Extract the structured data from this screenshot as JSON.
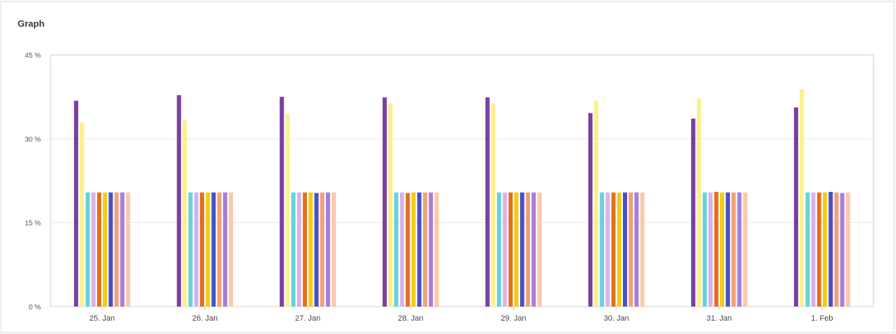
{
  "card": {
    "title": "Graph"
  },
  "chart_data": {
    "type": "bar",
    "title": "",
    "xlabel": "",
    "ylabel": "",
    "ylim": [
      0,
      45
    ],
    "yticks": [
      "0 %",
      "15 %",
      "30 %",
      "45 %"
    ],
    "ytick_values": [
      0,
      15,
      30,
      45
    ],
    "grid": true,
    "legend": "none",
    "categories": [
      "25. Jan",
      "26. Jan",
      "27. Jan",
      "28. Jan",
      "29. Jan",
      "30. Jan",
      "31. Jan",
      "1. Feb"
    ],
    "series": [
      {
        "color": "#7b3fa0",
        "values": [
          36.8,
          37.8,
          37.5,
          37.4,
          37.4,
          34.6,
          33.6,
          35.6
        ]
      },
      {
        "color": "#fbf08c",
        "values": [
          32.9,
          33.3,
          34.5,
          36.3,
          36.3,
          36.8,
          37.2,
          38.9
        ]
      },
      {
        "color": "#66d2dc",
        "values": [
          20.4,
          20.4,
          20.4,
          20.4,
          20.4,
          20.4,
          20.4,
          20.4
        ]
      },
      {
        "color": "#d7b3ea",
        "values": [
          20.4,
          20.4,
          20.4,
          20.4,
          20.4,
          20.4,
          20.4,
          20.4
        ]
      },
      {
        "color": "#e2701e",
        "values": [
          20.4,
          20.4,
          20.4,
          20.3,
          20.4,
          20.4,
          20.5,
          20.4
        ]
      },
      {
        "color": "#f3cc12",
        "values": [
          20.4,
          20.4,
          20.4,
          20.4,
          20.4,
          20.4,
          20.4,
          20.4
        ]
      },
      {
        "color": "#4a4fc9",
        "values": [
          20.4,
          20.4,
          20.3,
          20.4,
          20.4,
          20.4,
          20.4,
          20.5
        ]
      },
      {
        "color": "#f2a07a",
        "values": [
          20.4,
          20.4,
          20.4,
          20.4,
          20.4,
          20.4,
          20.4,
          20.4
        ]
      },
      {
        "color": "#a97ed6",
        "values": [
          20.4,
          20.4,
          20.4,
          20.4,
          20.4,
          20.4,
          20.4,
          20.3
        ]
      },
      {
        "color": "#fac9ab",
        "values": [
          20.4,
          20.4,
          20.4,
          20.4,
          20.4,
          20.4,
          20.4,
          20.4
        ]
      }
    ]
  }
}
